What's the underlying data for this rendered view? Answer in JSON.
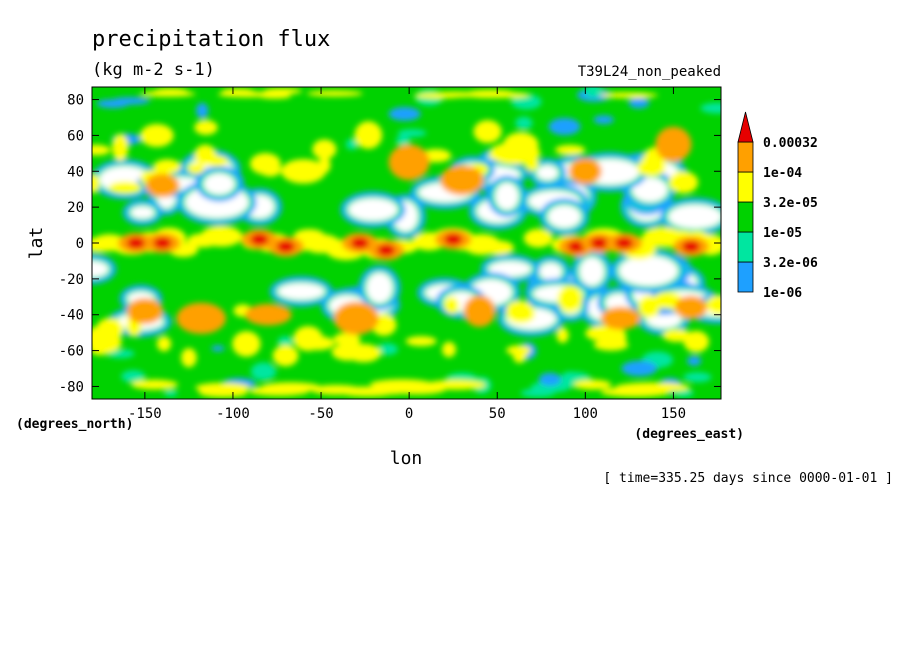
{
  "chart_data": {
    "type": "heatmap",
    "title": "precipitation flux",
    "units": "(kg m-2 s-1)",
    "dataset_label": "T39L24_non_peaked",
    "xlabel": "lon",
    "ylabel": "lat",
    "x_units": "(degrees_east)",
    "y_units": "(degrees_north)",
    "time_label": "[ time=335.25 days since 0000-01-01 ]",
    "xlim": [
      -180,
      177
    ],
    "ylim": [
      -87,
      87
    ],
    "x_ticks": [
      -150,
      -100,
      -50,
      0,
      50,
      100,
      150
    ],
    "y_ticks": [
      -80,
      -60,
      -40,
      -20,
      0,
      20,
      40,
      60,
      80
    ],
    "x_tick_labels": [
      "-150",
      "-100",
      "-50",
      "0",
      "50",
      "100",
      "150"
    ],
    "y_tick_labels": [
      "-80",
      "-60",
      "-40",
      "-20",
      "0",
      "20",
      "40",
      "60",
      "80"
    ],
    "colorbar": {
      "position": "right",
      "levels": [
        1e-06,
        3.2e-06,
        1e-05,
        3.2e-05,
        0.0001,
        0.00032
      ],
      "level_labels": [
        "1e-06",
        "3.2e-06",
        "1e-05",
        "3.2e-05",
        "1e-04",
        "0.00032"
      ],
      "colors": [
        "#1ea0ff",
        "#00e6a0",
        "#00d200",
        "#ffff00",
        "#ffa000",
        "#e60000"
      ],
      "below_color": "#ffffff",
      "extend": "max"
    },
    "features": {
      "itcz_peaks": [
        {
          "lon": -155,
          "lat": 0,
          "level": 5
        },
        {
          "lon": -140,
          "lat": 0,
          "level": 5
        },
        {
          "lon": -85,
          "lat": 2,
          "level": 5
        },
        {
          "lon": -70,
          "lat": -2,
          "level": 5
        },
        {
          "lon": -28,
          "lat": 0,
          "level": 5
        },
        {
          "lon": -13,
          "lat": -4,
          "level": 5
        },
        {
          "lon": 25,
          "lat": 2,
          "level": 5
        },
        {
          "lon": 95,
          "lat": -2,
          "level": 5
        },
        {
          "lon": 108,
          "lat": 0,
          "level": 5
        },
        {
          "lon": 122,
          "lat": 0,
          "level": 5
        },
        {
          "lon": 160,
          "lat": -2,
          "level": 5
        }
      ],
      "moderate_regions": [
        {
          "lon": -150,
          "lat": -38,
          "level": 4
        },
        {
          "lon": -118,
          "lat": -42,
          "level": 4
        },
        {
          "lon": -80,
          "lat": -40,
          "level": 4
        },
        {
          "lon": -30,
          "lat": -42,
          "level": 4
        },
        {
          "lon": 40,
          "lat": -38,
          "level": 4
        },
        {
          "lon": 120,
          "lat": -42,
          "level": 4
        },
        {
          "lon": 160,
          "lat": -36,
          "level": 4
        },
        {
          "lon": 0,
          "lat": 45,
          "level": 4
        },
        {
          "lon": 30,
          "lat": 35,
          "level": 4
        },
        {
          "lon": 100,
          "lat": 40,
          "level": 4
        },
        {
          "lon": 150,
          "lat": 55,
          "level": 4
        },
        {
          "lon": -140,
          "lat": 32,
          "level": 4
        },
        {
          "lon": -60,
          "lat": 40,
          "level": 3
        },
        {
          "lon": 60,
          "lat": 50,
          "level": 3
        }
      ]
    }
  }
}
